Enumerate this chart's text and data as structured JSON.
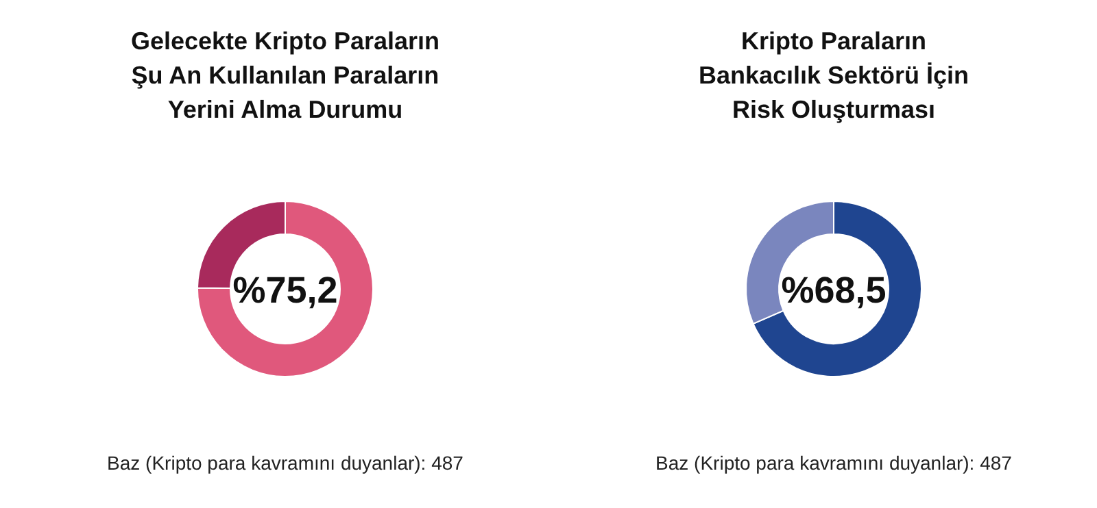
{
  "chart_data": [
    {
      "type": "donut",
      "title": "Gelecekte Kripto Paraların\nŞu An Kullanılan Paraların\nYerini Alma Durumu",
      "categories": [
        null,
        null
      ],
      "values": [
        75.2,
        24.8
      ],
      "colors": [
        "#e0587c",
        "#a82a5c"
      ],
      "value_labels": [
        "%75,2",
        null
      ],
      "annotations": [
        "Baz (Kripto para kavramını duyanlar): 487"
      ]
    },
    {
      "type": "donut",
      "title": "Kripto Paraların\nBankacılık Sektörü İçin\nRisk Oluşturması",
      "categories": [
        null,
        null
      ],
      "values": [
        68.5,
        31.5
      ],
      "colors": [
        "#1f4590",
        "#7a86be"
      ],
      "value_labels": [
        "%68,5",
        null
      ],
      "annotations": [
        "Baz (Kripto para kavramını duyanlar): 487"
      ]
    }
  ]
}
